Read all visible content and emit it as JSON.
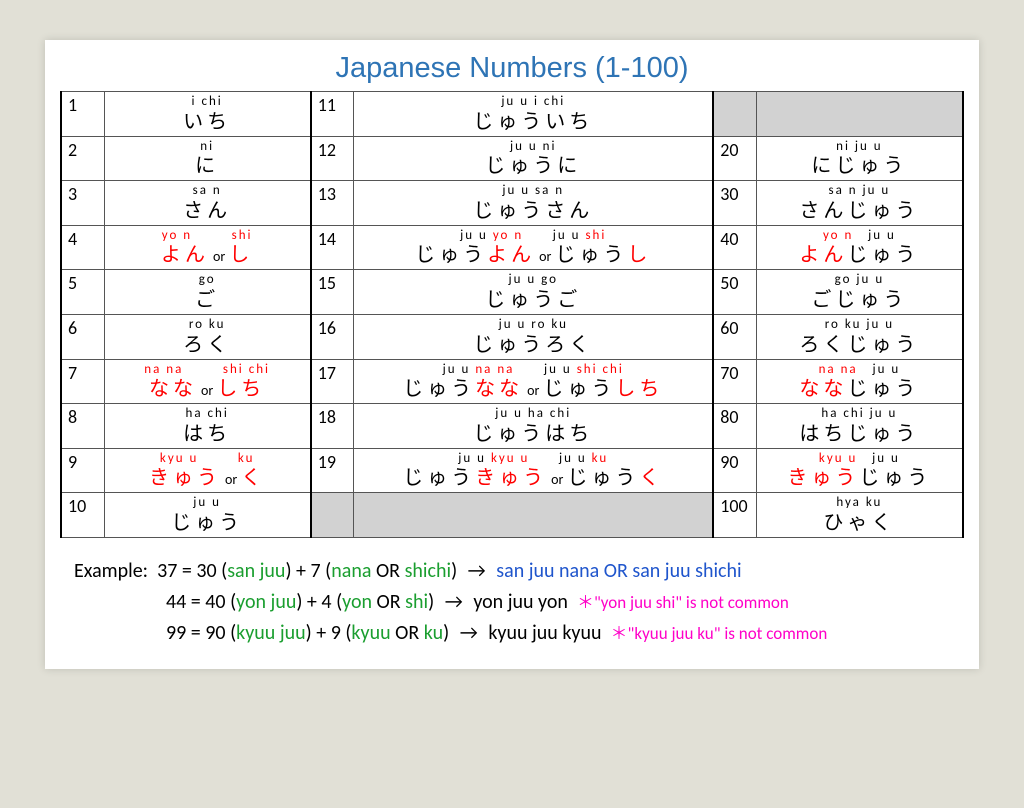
{
  "title": "Japanese Numbers (1-100)",
  "colors": {
    "title": "#2e74b5",
    "red": "#ff0000",
    "blue": "#1f55cc",
    "green": "#1a9e2f",
    "pink": "#ff00c8",
    "grey_bg": "#d2d2d2",
    "page_bg": "#e1e0d6"
  },
  "font": {
    "title_family": "Comic Sans MS",
    "body_family": "Calibri",
    "title_size": 29,
    "num_size": 18,
    "rom_size": 13,
    "jp_size": 20,
    "example_size": 20
  },
  "rows": [
    {
      "c1": {
        "num": "1",
        "rom": "i chi",
        "jp": "いち"
      },
      "c2": {
        "num": "11",
        "rom": "ju u i chi",
        "jp": "じゅういち"
      },
      "c3": {
        "grey": true
      }
    },
    {
      "c1": {
        "num": "2",
        "rom": "ni",
        "jp": "に"
      },
      "c2": {
        "num": "12",
        "rom": "ju u ni",
        "jp": "じゅうに"
      },
      "c3": {
        "num": "20",
        "rom": "ni ju u",
        "jp": "にじゅう"
      }
    },
    {
      "c1": {
        "num": "3",
        "rom": "sa n",
        "jp": "さん"
      },
      "c2": {
        "num": "13",
        "rom": "ju u sa n",
        "jp": "じゅうさん"
      },
      "c3": {
        "num": "30",
        "rom": "sa n ju u",
        "jp": "さんじゅう"
      }
    },
    {
      "c1": {
        "num": "4",
        "rom_a": "yo n",
        "rom_b": "shi",
        "jp_a": "よん",
        "jp_b": "し",
        "alt": true
      },
      "c2": {
        "num": "14",
        "rom_a": "ju u yo n",
        "rom_b": "ju u shi",
        "jp_a": "じゅうよん",
        "jp_b": "じゅうし",
        "alt": true,
        "mixed": true
      },
      "c3": {
        "num": "40",
        "rom_a": "yo n",
        "rom_b": "ju u",
        "jp_a": "よん",
        "jp_b": "じゅう",
        "half_red": true
      }
    },
    {
      "c1": {
        "num": "5",
        "rom": "go",
        "jp": "ご"
      },
      "c2": {
        "num": "15",
        "rom": "ju u go",
        "jp": "じゅうご"
      },
      "c3": {
        "num": "50",
        "rom": "go ju u",
        "jp": "ごじゅう"
      }
    },
    {
      "c1": {
        "num": "6",
        "rom": "ro ku",
        "jp": "ろく"
      },
      "c2": {
        "num": "16",
        "rom": "ju u ro ku",
        "jp": "じゅうろく"
      },
      "c3": {
        "num": "60",
        "rom": "ro ku ju u",
        "jp": "ろくじゅう"
      }
    },
    {
      "c1": {
        "num": "7",
        "rom_a": "na na",
        "rom_b": "shi chi",
        "jp_a": "なな",
        "jp_b": "しち",
        "alt": true
      },
      "c2": {
        "num": "17",
        "rom_a": "ju u na na",
        "rom_b": "ju u shi chi",
        "jp_a": "じゅうなな",
        "jp_b": "じゅうしち",
        "alt": true,
        "mixed": true
      },
      "c3": {
        "num": "70",
        "rom_a": "na na",
        "rom_b": "ju u",
        "jp_a": "なな",
        "jp_b": "じゅう",
        "half_red": true
      }
    },
    {
      "c1": {
        "num": "8",
        "rom": "ha chi",
        "jp": "はち"
      },
      "c2": {
        "num": "18",
        "rom": "ju u ha chi",
        "jp": "じゅうはち"
      },
      "c3": {
        "num": "80",
        "rom": "ha chi ju u",
        "jp": "はちじゅう"
      }
    },
    {
      "c1": {
        "num": "9",
        "rom_a": "kyu u",
        "rom_b": "ku",
        "jp_a": "きゅう",
        "jp_b": "く",
        "alt": true
      },
      "c2": {
        "num": "19",
        "rom_a": "ju u kyu u",
        "rom_b": "ju u ku",
        "jp_a": "じゅうきゅう",
        "jp_b": "じゅうく",
        "alt": true,
        "mixed": true
      },
      "c3": {
        "num": "90",
        "rom_a": "kyu u",
        "rom_b": "ju u",
        "jp_a": "きゅう",
        "jp_b": "じゅう",
        "half_red": true
      }
    },
    {
      "c1": {
        "num": "10",
        "rom": "ju u",
        "jp": "じゅう"
      },
      "c2": {
        "grey": true
      },
      "c3": {
        "num": "100",
        "rom": "hya ku",
        "jp": "ひゃく"
      }
    }
  ],
  "or_label": "or",
  "example_label": "Example:",
  "examples": [
    {
      "eq": "37 = 30 (",
      "a": "san juu",
      ") + 7 (": true,
      "b": "nana",
      "or": " OR ",
      "c": "shichi",
      "close": ")",
      "arrow": "→",
      "r": "san juu nana OR san juu shichi",
      "r_blue": true
    },
    {
      "eq": "44 = 40 (",
      "a": "yon juu",
      ") + 4 (": true,
      "b": "yon",
      "or": " OR ",
      "c": "shi",
      "close": ")",
      "arrow": "→",
      "r": "yon juu yon",
      "note": "＊\"yon juu shi\" is not common"
    },
    {
      "eq": "99 = 90 (",
      "a": "kyuu juu",
      ") + 9 (": true,
      "b": "kyuu",
      "or": " OR ",
      "c": "ku",
      "close": ")",
      "arrow": "→",
      "r": "kyuu juu kyuu",
      "note": "＊\"kyuu juu ku\" is not common"
    }
  ]
}
